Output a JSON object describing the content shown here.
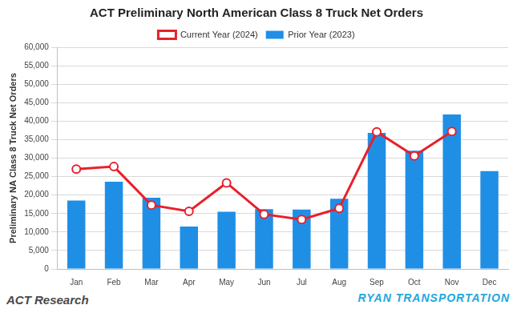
{
  "chart_data": {
    "type": "bar",
    "title": "ACT Preliminary North American Class 8 Truck Net Orders",
    "y_label": "Preliminary NA Class 8 Truck Net Orders",
    "categories": [
      "Jan",
      "Feb",
      "Mar",
      "Apr",
      "May",
      "Jun",
      "Jul",
      "Aug",
      "Sep",
      "Oct",
      "Nov",
      "Dec"
    ],
    "series": [
      {
        "name": "Prior Year (2023)",
        "type": "bar",
        "color": "#1f8fe6",
        "values": [
          18500,
          23600,
          19300,
          11500,
          15500,
          16200,
          16100,
          19000,
          36800,
          32000,
          41800,
          26500
        ]
      },
      {
        "name": "Current Year (2024)",
        "type": "line",
        "color": "#e8202a",
        "marker": "circle",
        "values": [
          27000,
          27700,
          17300,
          15600,
          23300,
          14800,
          13400,
          16400,
          37100,
          30600,
          37200,
          null
        ]
      }
    ],
    "ylim": [
      0,
      60000
    ],
    "yticks": [
      0,
      {
        "value": 5000,
        "label": "5,000"
      },
      {
        "value": 10000,
        "label": "10,000"
      },
      {
        "value": 15000,
        "label": "15,000"
      },
      {
        "value": 20000,
        "label": "20,000"
      },
      {
        "value": 25000,
        "label": "25,000"
      },
      {
        "value": 30000,
        "label": "30,000"
      },
      {
        "value": 35000,
        "label": "35,000"
      },
      {
        "value": 40000,
        "label": "40,000"
      },
      {
        "value": 45000,
        "label": "45,000"
      },
      {
        "value": 50000,
        "label": "50,000"
      },
      {
        "value": 55000,
        "label": "55,000"
      },
      {
        "value": 60000,
        "label": "60,000"
      }
    ],
    "grid": true,
    "legend": "top",
    "annotations": [
      "ACT Research",
      "RYAN TRANSPORTATION"
    ]
  }
}
